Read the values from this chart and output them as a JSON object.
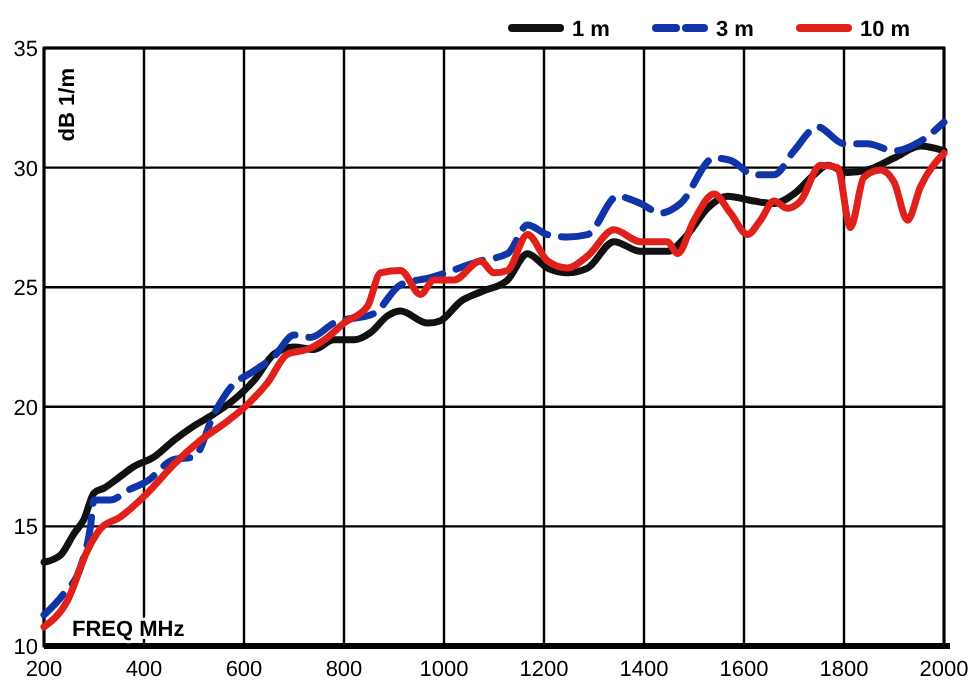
{
  "chart_data": {
    "type": "line",
    "xlabel": "FREQ MHz",
    "ylabel": "dB 1/m",
    "xlim": [
      200,
      2000
    ],
    "ylim": [
      10,
      35
    ],
    "xticks": [
      200,
      400,
      600,
      800,
      1000,
      1200,
      1400,
      1600,
      1800,
      2000
    ],
    "yticks": [
      10,
      15,
      20,
      25,
      30,
      35
    ],
    "grid": true,
    "legend": "top right",
    "series": [
      {
        "name": "1 m",
        "color": "#111111",
        "line_style": "solid",
        "x": [
          200,
          233,
          260,
          280,
          300,
          320,
          347,
          380,
          420,
          460,
          500,
          540,
          580,
          620,
          660,
          700,
          740,
          780,
          820,
          853,
          887,
          913,
          967,
          993,
          1033,
          1073,
          1127,
          1167,
          1207,
          1247,
          1287,
          1340,
          1393,
          1447,
          1487,
          1527,
          1567,
          1620,
          1660,
          1700,
          1740,
          1767,
          1807,
          1847,
          1900,
          1953,
          2000
        ],
        "values": [
          13.5,
          13.8,
          14.7,
          15.3,
          16.4,
          16.6,
          17.0,
          17.5,
          17.9,
          18.6,
          19.2,
          19.7,
          20.3,
          21.1,
          22.2,
          22.5,
          22.4,
          22.8,
          22.8,
          23.1,
          23.8,
          24.0,
          23.5,
          23.6,
          24.4,
          24.8,
          25.3,
          26.4,
          25.8,
          25.6,
          25.8,
          26.9,
          26.5,
          26.5,
          27.2,
          28.3,
          28.8,
          28.6,
          28.5,
          28.9,
          29.7,
          30.1,
          29.8,
          29.9,
          30.4,
          30.9,
          30.7
        ]
      },
      {
        "name": "3 m",
        "color": "#1035a8",
        "line_style": "dashed",
        "x": [
          200,
          240,
          273,
          293,
          300,
          333,
          367,
          407,
          460,
          500,
          540,
          573,
          620,
          660,
          700,
          733,
          780,
          860,
          913,
          973,
          1073,
          1127,
          1167,
          1207,
          1247,
          1287,
          1347,
          1393,
          1433,
          1473,
          1540,
          1573,
          1620,
          1660,
          1700,
          1747,
          1800,
          1847,
          1900,
          1953,
          2000
        ],
        "values": [
          11.3,
          12.2,
          13.3,
          15,
          16.1,
          16.1,
          16.5,
          16.9,
          17.8,
          17.9,
          19.7,
          20.8,
          21.5,
          22.1,
          23,
          22.9,
          23.5,
          23.9,
          25.1,
          25.4,
          26.1,
          26.4,
          27.6,
          27.2,
          27.1,
          27.2,
          28.8,
          28.5,
          28.1,
          28.5,
          30.4,
          30.3,
          29.7,
          29.7,
          30.7,
          31.7,
          31,
          31,
          30.7,
          31.1,
          31.9
        ]
      },
      {
        "name": "10 m",
        "color": "#e0201a",
        "line_style": "solid",
        "x": [
          200,
          247,
          287,
          313,
          353,
          407,
          460,
          513,
          567,
          607,
          647,
          687,
          727,
          767,
          800,
          847,
          873,
          913,
          953,
          980,
          1020,
          1073,
          1100,
          1127,
          1167,
          1207,
          1247,
          1287,
          1340,
          1393,
          1447,
          1467,
          1500,
          1540,
          1573,
          1607,
          1633,
          1660,
          1687,
          1713,
          1753,
          1787,
          1813,
          1840,
          1873,
          1900,
          1927,
          1953,
          2000
        ],
        "values": [
          10.8,
          11.9,
          14,
          14.9,
          15.4,
          16.4,
          17.6,
          18.6,
          19.4,
          20.1,
          21,
          22.2,
          22.4,
          22.9,
          23.5,
          24.2,
          25.6,
          25.7,
          24.7,
          25.3,
          25.3,
          26.1,
          25.6,
          25.7,
          27.2,
          26.1,
          25.8,
          26.3,
          27.4,
          26.9,
          26.9,
          26.4,
          27.8,
          28.9,
          28.1,
          27.2,
          27.8,
          28.6,
          28.3,
          28.6,
          30.1,
          30,
          27.5,
          29.6,
          29.9,
          29.4,
          27.8,
          29.2,
          30.6
        ]
      }
    ]
  }
}
